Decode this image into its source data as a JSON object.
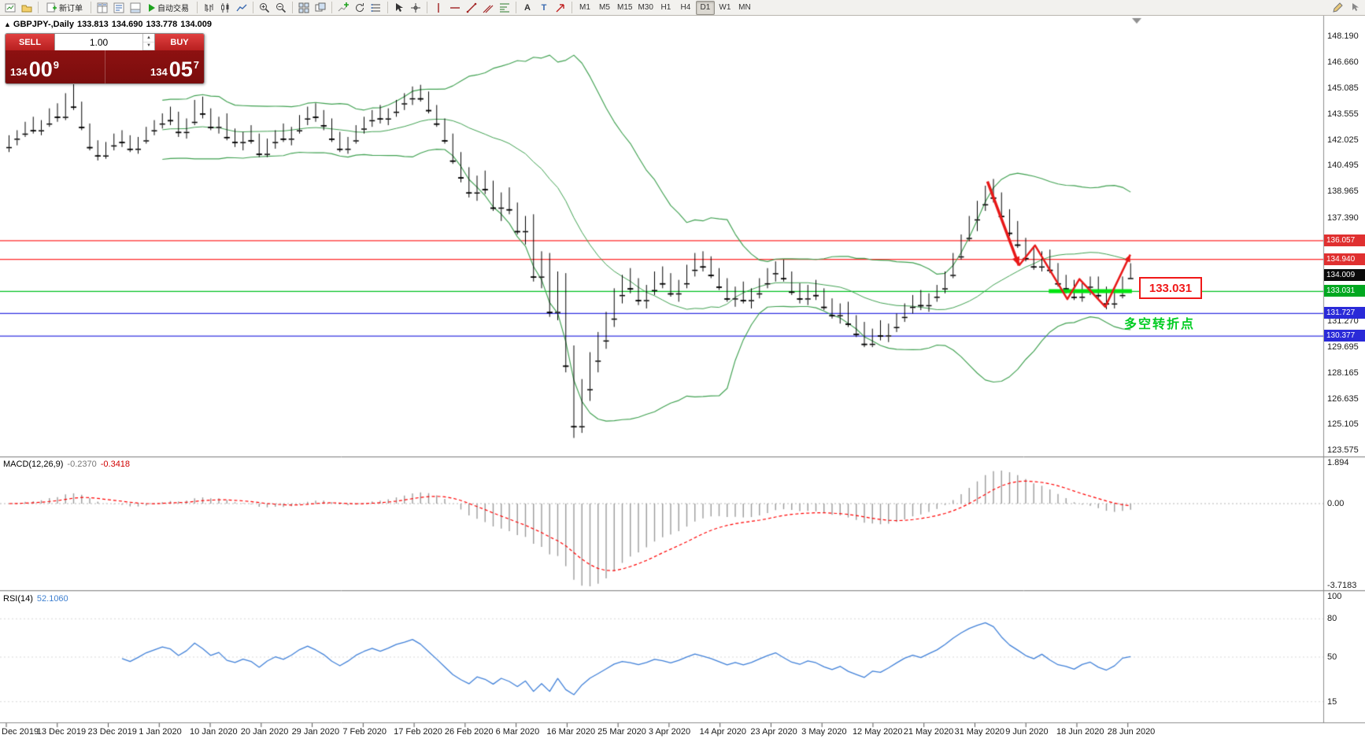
{
  "toolbar": {
    "new_order": "新订单",
    "autotrading": "自动交易",
    "timeframes": [
      "M1",
      "M5",
      "M15",
      "M30",
      "H1",
      "H4",
      "D1",
      "W1",
      "MN"
    ],
    "active_timeframe": "D1",
    "icon_names": [
      "new-chart-icon",
      "profiles-icon",
      "new-order-icon",
      "market-watch-icon",
      "data-window-icon",
      "terminal-icon",
      "play-icon",
      "bar-chart-icon",
      "candlestick-chart-icon",
      "line-chart-icon",
      "zoom-in-icon",
      "zoom-out-icon",
      "tile-windows-icon",
      "cascade-windows-icon",
      "add-indicator-icon",
      "cycles-icon",
      "objects-list-icon",
      "cursor-icon",
      "crosshair-icon",
      "vertical-line-icon",
      "horizontal-line-icon",
      "trendline-icon",
      "channel-icon",
      "fibonacci-icon",
      "text-icon",
      "text-label-icon",
      "arrow-tool-icon",
      "pencil-icon",
      "pointer-icon"
    ]
  },
  "chart": {
    "symbol": "GBPJPY-,Daily",
    "open": "133.813",
    "high": "134.690",
    "low": "133.778",
    "close": "134.009"
  },
  "quote_panel": {
    "sell_label": "SELL",
    "buy_label": "BUY",
    "volume": "1.00",
    "bid": {
      "small": "134",
      "big": "00",
      "sup": "9"
    },
    "ask": {
      "small": "134",
      "big": "05",
      "sup": "7"
    }
  },
  "panes": {
    "macd_name": "MACD(12,26,9)",
    "macd_main": "-0.2370",
    "macd_signal": "-0.3418",
    "rsi_name": "RSI(14)",
    "rsi_value": "52.1060"
  },
  "axes": {
    "price_ticks": [
      148.19,
      146.66,
      145.085,
      143.555,
      142.025,
      140.495,
      138.965,
      137.39,
      131.27,
      129.695,
      128.165,
      126.635,
      125.105,
      123.575
    ],
    "macd_ticks": [
      1.894,
      0,
      -3.7183
    ],
    "macd_tick_labels": [
      "1.894",
      "0.00",
      "-3.7183"
    ],
    "rsi_ticks": [
      100,
      80,
      50,
      15
    ],
    "dates": [
      "Dec 2019",
      "13 Dec 2019",
      "23 Dec 2019",
      "1 Jan 2020",
      "10 Jan 2020",
      "20 Jan 2020",
      "29 Jan 2020",
      "7 Feb 2020",
      "17 Feb 2020",
      "26 Feb 2020",
      "6 Mar 2020",
      "16 Mar 2020",
      "25 Mar 2020",
      "3 Apr 2020",
      "14 Apr 2020",
      "23 Apr 2020",
      "3 May 2020",
      "12 May 2020",
      "21 May 2020",
      "31 May 2020",
      "9 Jun 2020",
      "18 Jun 2020",
      "28 Jun 2020"
    ]
  },
  "annotations": {
    "price_label": "133.031",
    "cn_note": "多空转折点",
    "note_color": "#00cc22",
    "zigzag": {
      "color": "#e81818",
      "points": [
        [
          121.6,
          139.55
        ],
        [
          125.5,
          134.55
        ],
        [
          127.5,
          135.75
        ],
        [
          131.5,
          132.55
        ],
        [
          133.0,
          133.75
        ],
        [
          136.2,
          132.1
        ],
        [
          139.3,
          135.2
        ]
      ]
    },
    "support_segment": {
      "price": 133.031,
      "i1": 129.2,
      "i2": 139.5,
      "color": "#00e410"
    },
    "hlines": [
      {
        "price": 136.057,
        "color": "#ff2828"
      },
      {
        "price": 134.94,
        "color": "#ff2828"
      },
      {
        "price": 133.031,
        "color": "#00c020"
      },
      {
        "price": 131.727,
        "color": "#3030e0"
      },
      {
        "price": 130.377,
        "color": "#3030e0"
      }
    ],
    "tags": [
      {
        "label": "136.057",
        "price": 136.057,
        "bg": "#e03030"
      },
      {
        "label": "134.940",
        "price": 134.94,
        "bg": "#e03030"
      },
      {
        "label": "134.009",
        "price": 134.009,
        "bg": "#0a0a0a"
      },
      {
        "label": "133.031",
        "price": 133.031,
        "bg": "#00a820"
      },
      {
        "label": "131.727",
        "price": 131.727,
        "bg": "#2a2ad8"
      },
      {
        "label": "130.377",
        "price": 130.377,
        "bg": "#2a2ad8"
      }
    ]
  },
  "chart_data": {
    "type": "candlestick",
    "symbol": "GBPJPY-",
    "timeframe": "Daily",
    "title": "GBPJPY-,Daily 133.813 134.690 133.778 134.009",
    "x_range": [
      "Dec 2019",
      "28 Jun 2020"
    ],
    "y_range": [
      123.575,
      148.19
    ],
    "indicators": {
      "bollinger": {
        "period": 20,
        "deviation": 2,
        "color": "#3fa050"
      },
      "macd": {
        "fast": 12,
        "slow": 26,
        "signal": 9,
        "main_value": -0.237,
        "signal_value": -0.3418,
        "scale": [
          1.894,
          -3.7183
        ]
      },
      "rsi": {
        "period": 14,
        "value": 52.106,
        "scale": [
          100,
          80,
          50,
          15
        ]
      }
    },
    "candles": [
      [
        141.6,
        142.3,
        141.3,
        142.1
      ],
      [
        142.1,
        142.6,
        141.7,
        142.4
      ],
      [
        142.4,
        143.1,
        142.2,
        142.9
      ],
      [
        142.9,
        143.4,
        142.4,
        142.6
      ],
      [
        142.6,
        143.2,
        142.3,
        143.0
      ],
      [
        143.0,
        143.9,
        142.8,
        143.7
      ],
      [
        143.7,
        144.2,
        143.1,
        143.4
      ],
      [
        143.4,
        144.8,
        143.2,
        144.6
      ],
      [
        144.6,
        145.35,
        143.8,
        144.0
      ],
      [
        144.0,
        144.3,
        142.6,
        142.8
      ],
      [
        142.8,
        143.0,
        141.4,
        141.6
      ],
      [
        141.6,
        142.0,
        140.8,
        141.1
      ],
      [
        141.1,
        141.9,
        140.9,
        141.7
      ],
      [
        141.7,
        142.4,
        141.4,
        142.2
      ],
      [
        142.2,
        142.6,
        141.6,
        141.9
      ],
      [
        141.9,
        142.3,
        141.3,
        141.5
      ],
      [
        141.5,
        142.2,
        141.2,
        142.0
      ],
      [
        142.0,
        142.8,
        141.8,
        142.6
      ],
      [
        142.6,
        143.2,
        142.3,
        143.0
      ],
      [
        143.0,
        143.6,
        142.7,
        143.4
      ],
      [
        143.4,
        144.0,
        142.9,
        143.2
      ],
      [
        143.2,
        143.7,
        142.2,
        142.5
      ],
      [
        142.5,
        143.3,
        142.1,
        143.1
      ],
      [
        143.1,
        144.4,
        142.9,
        144.2
      ],
      [
        144.2,
        144.6,
        143.3,
        143.6
      ],
      [
        143.6,
        143.9,
        142.6,
        142.8
      ],
      [
        142.8,
        143.4,
        142.4,
        143.2
      ],
      [
        143.2,
        143.6,
        142.0,
        142.2
      ],
      [
        142.2,
        142.7,
        141.6,
        141.9
      ],
      [
        141.9,
        142.5,
        141.4,
        142.3
      ],
      [
        142.3,
        142.9,
        141.8,
        142.0
      ],
      [
        142.0,
        142.4,
        141.0,
        141.2
      ],
      [
        141.2,
        142.1,
        141.0,
        141.9
      ],
      [
        141.9,
        142.6,
        141.5,
        142.4
      ],
      [
        142.4,
        143.0,
        141.9,
        142.1
      ],
      [
        142.1,
        142.8,
        141.7,
        142.6
      ],
      [
        142.6,
        143.5,
        142.4,
        143.3
      ],
      [
        143.3,
        144.0,
        142.9,
        143.8
      ],
      [
        143.8,
        144.2,
        143.1,
        143.4
      ],
      [
        143.4,
        143.8,
        142.6,
        142.9
      ],
      [
        142.9,
        143.3,
        141.9,
        142.1
      ],
      [
        142.1,
        142.5,
        141.3,
        141.5
      ],
      [
        141.5,
        142.2,
        141.2,
        142.0
      ],
      [
        142.0,
        142.9,
        141.8,
        142.7
      ],
      [
        142.7,
        143.4,
        142.4,
        143.2
      ],
      [
        143.2,
        143.8,
        142.8,
        143.6
      ],
      [
        143.6,
        144.1,
        143.0,
        143.3
      ],
      [
        143.3,
        143.9,
        142.9,
        143.7
      ],
      [
        143.7,
        144.4,
        143.4,
        144.2
      ],
      [
        144.2,
        144.8,
        143.8,
        144.5
      ],
      [
        144.5,
        145.2,
        144.1,
        144.9
      ],
      [
        144.9,
        145.3,
        144.3,
        144.5
      ],
      [
        144.5,
        144.9,
        143.6,
        143.8
      ],
      [
        143.8,
        144.1,
        142.8,
        143.0
      ],
      [
        143.0,
        143.3,
        141.8,
        142.0
      ],
      [
        142.0,
        142.4,
        140.6,
        140.8
      ],
      [
        140.8,
        141.3,
        139.5,
        139.8
      ],
      [
        139.8,
        140.4,
        138.6,
        138.9
      ],
      [
        138.9,
        139.9,
        138.4,
        139.6
      ],
      [
        139.6,
        140.2,
        138.8,
        139.1
      ],
      [
        139.1,
        139.6,
        137.8,
        138.0
      ],
      [
        138.0,
        138.9,
        137.2,
        138.6
      ],
      [
        138.6,
        139.2,
        137.6,
        137.9
      ],
      [
        137.9,
        138.3,
        136.4,
        136.6
      ],
      [
        136.6,
        137.5,
        135.8,
        137.2
      ],
      [
        137.2,
        137.6,
        133.6,
        133.9
      ],
      [
        133.9,
        135.4,
        133.2,
        134.9
      ],
      [
        134.9,
        135.3,
        131.5,
        131.8
      ],
      [
        131.8,
        134.2,
        131.3,
        133.9
      ],
      [
        133.9,
        134.1,
        128.2,
        128.6
      ],
      [
        128.6,
        129.8,
        124.3,
        125.0
      ],
      [
        125.0,
        127.8,
        124.6,
        127.2
      ],
      [
        127.2,
        129.4,
        126.5,
        128.9
      ],
      [
        128.9,
        130.6,
        128.2,
        130.1
      ],
      [
        130.1,
        131.8,
        129.6,
        131.4
      ],
      [
        131.4,
        133.2,
        130.9,
        132.8
      ],
      [
        132.8,
        134.0,
        132.3,
        133.6
      ],
      [
        133.6,
        134.4,
        132.9,
        133.2
      ],
      [
        133.2,
        133.8,
        132.2,
        132.5
      ],
      [
        132.5,
        133.4,
        132.0,
        133.1
      ],
      [
        133.1,
        134.2,
        132.8,
        133.9
      ],
      [
        133.9,
        134.5,
        133.2,
        133.5
      ],
      [
        133.5,
        134.1,
        132.7,
        132.9
      ],
      [
        132.9,
        133.7,
        132.4,
        133.5
      ],
      [
        133.5,
        134.6,
        133.2,
        134.3
      ],
      [
        134.3,
        135.3,
        133.9,
        135.0
      ],
      [
        135.0,
        135.4,
        134.2,
        134.5
      ],
      [
        134.5,
        135.1,
        133.8,
        134.0
      ],
      [
        134.0,
        134.4,
        133.1,
        133.3
      ],
      [
        133.3,
        133.8,
        132.4,
        132.6
      ],
      [
        132.6,
        133.3,
        132.1,
        133.0
      ],
      [
        133.0,
        133.6,
        132.3,
        132.5
      ],
      [
        132.5,
        133.2,
        132.0,
        132.9
      ],
      [
        132.9,
        133.8,
        132.6,
        133.5
      ],
      [
        133.5,
        134.4,
        133.2,
        134.1
      ],
      [
        134.1,
        134.8,
        133.6,
        134.6
      ],
      [
        134.6,
        134.9,
        133.6,
        133.8
      ],
      [
        133.8,
        134.2,
        132.8,
        133.0
      ],
      [
        133.0,
        133.5,
        132.3,
        132.6
      ],
      [
        132.6,
        133.4,
        132.2,
        133.1
      ],
      [
        133.1,
        133.7,
        132.5,
        132.8
      ],
      [
        132.8,
        133.2,
        131.9,
        132.1
      ],
      [
        132.1,
        132.6,
        131.4,
        131.6
      ],
      [
        131.6,
        132.3,
        131.1,
        132.0
      ],
      [
        132.0,
        132.4,
        130.9,
        131.1
      ],
      [
        131.1,
        131.6,
        130.3,
        130.5
      ],
      [
        130.5,
        131.2,
        129.7,
        129.9
      ],
      [
        129.9,
        130.8,
        129.7,
        130.6
      ],
      [
        130.6,
        131.3,
        130.1,
        130.4
      ],
      [
        130.4,
        131.1,
        130.0,
        130.9
      ],
      [
        130.9,
        131.7,
        130.6,
        131.5
      ],
      [
        131.5,
        132.3,
        131.2,
        132.1
      ],
      [
        132.1,
        132.8,
        131.7,
        132.5
      ],
      [
        132.5,
        133.1,
        131.9,
        132.2
      ],
      [
        132.2,
        132.9,
        131.8,
        132.7
      ],
      [
        132.7,
        133.4,
        132.4,
        133.2
      ],
      [
        133.2,
        134.2,
        132.9,
        134.0
      ],
      [
        134.0,
        135.3,
        133.8,
        135.1
      ],
      [
        135.1,
        136.4,
        134.9,
        136.2
      ],
      [
        136.2,
        137.5,
        136.0,
        137.3
      ],
      [
        137.3,
        138.4,
        136.6,
        138.2
      ],
      [
        138.2,
        139.3,
        137.8,
        139.0
      ],
      [
        139.0,
        139.7,
        138.3,
        138.6
      ],
      [
        138.6,
        138.9,
        137.3,
        137.5
      ],
      [
        137.5,
        137.9,
        136.3,
        136.5
      ],
      [
        136.5,
        137.2,
        135.6,
        135.8
      ],
      [
        135.8,
        136.2,
        134.8,
        135.0
      ],
      [
        135.0,
        135.6,
        134.3,
        134.5
      ],
      [
        134.5,
        135.4,
        134.2,
        135.2
      ],
      [
        135.2,
        135.5,
        134.1,
        134.3
      ],
      [
        134.3,
        134.7,
        133.3,
        133.5
      ],
      [
        133.5,
        134.0,
        132.9,
        133.2
      ],
      [
        133.2,
        133.7,
        132.5,
        132.7
      ],
      [
        132.7,
        133.5,
        132.4,
        133.3
      ],
      [
        133.3,
        133.9,
        132.8,
        133.6
      ],
      [
        133.6,
        133.9,
        132.6,
        132.8
      ],
      [
        132.8,
        133.3,
        131.95,
        132.3
      ],
      [
        132.3,
        133.0,
        132.0,
        132.8
      ],
      [
        132.8,
        133.9,
        132.6,
        133.8
      ],
      [
        133.813,
        134.69,
        133.778,
        134.009
      ]
    ]
  }
}
